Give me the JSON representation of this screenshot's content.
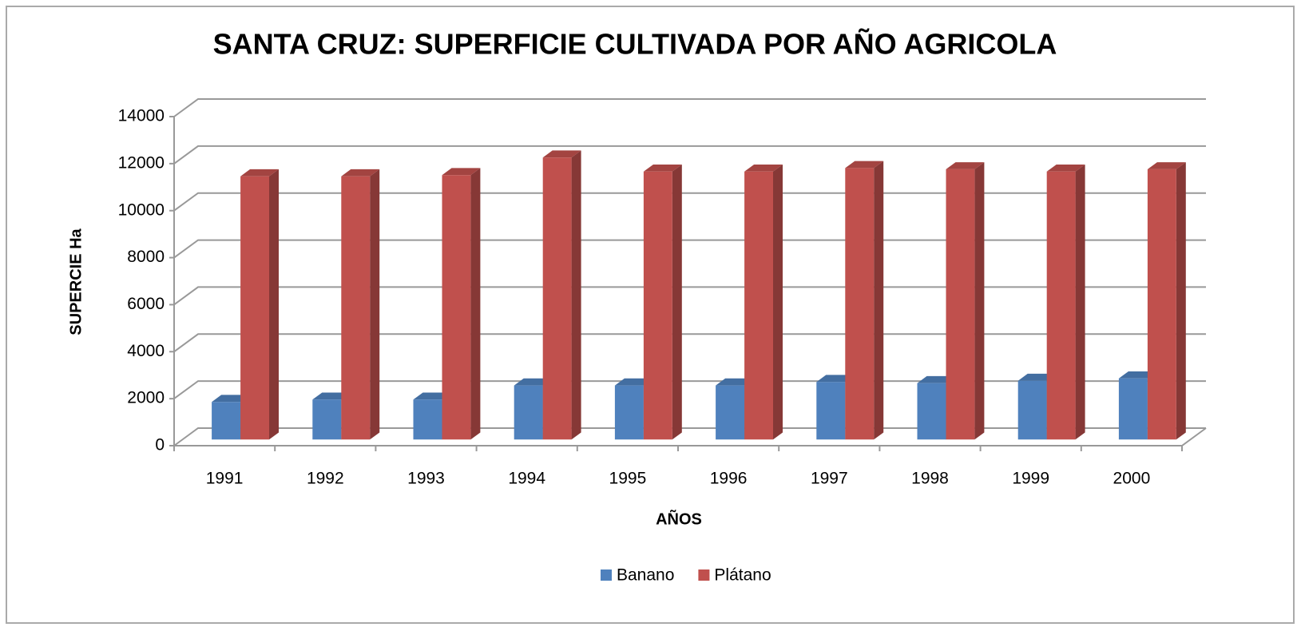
{
  "chart_data": {
    "type": "bar3d",
    "title": "SANTA CRUZ: SUPERFICIE CULTIVADA  POR AÑO AGRICOLA",
    "y_label": "SUPERCIE Ha",
    "x_label": "AÑOS",
    "categories": [
      "1991",
      "1992",
      "1993",
      "1994",
      "1995",
      "1996",
      "1997",
      "1998",
      "1999",
      "2000"
    ],
    "series": [
      {
        "name": "Banano",
        "color": "#4f81bd",
        "values": [
          1600,
          1700,
          1700,
          2300,
          2300,
          2300,
          2450,
          2400,
          2500,
          2600
        ]
      },
      {
        "name": "Plátano",
        "color": "#c0504d",
        "values": [
          11200,
          11200,
          11250,
          12000,
          11400,
          11400,
          11550,
          11500,
          11400,
          11500
        ]
      }
    ],
    "ylim": [
      0,
      14000
    ],
    "yticks": [
      0,
      2000,
      4000,
      6000,
      8000,
      10000,
      12000,
      14000
    ],
    "grid": true,
    "legend": "bottom"
  }
}
